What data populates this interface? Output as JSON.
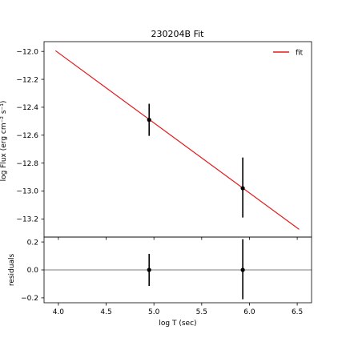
{
  "chart_data": [
    {
      "type": "line",
      "panel": "main",
      "title": "230204B Fit",
      "xlabel": "",
      "ylabel": "log Flux (erg cm⁻² s⁻¹)",
      "xlim": [
        3.85,
        6.65
      ],
      "ylim": [
        -13.33,
        -11.93
      ],
      "xticks": [
        4.0,
        4.5,
        5.0,
        5.5,
        6.0,
        6.5
      ],
      "yticks": [
        -12.0,
        -12.2,
        -12.4,
        -12.6,
        -12.8,
        -13.0,
        -13.2
      ],
      "ytick_labels": [
        "−12.0",
        "−12.2",
        "−12.4",
        "−12.6",
        "−12.8",
        "−13.0",
        "−13.2"
      ],
      "grid": false,
      "legend_position": "top-right",
      "series": [
        {
          "name": "fit",
          "kind": "line",
          "color": "#e41a1c",
          "x": [
            3.97,
            6.52
          ],
          "y": [
            -11.995,
            -13.275
          ]
        },
        {
          "kind": "errorbar",
          "color": "#000000",
          "x": [
            4.95,
            5.93
          ],
          "y": [
            -12.49,
            -12.98
          ],
          "yerr_low": [
            0.115,
            0.21
          ],
          "yerr_high": [
            0.115,
            0.22
          ]
        }
      ]
    },
    {
      "type": "scatter",
      "panel": "residuals",
      "xlabel": "log T (sec)",
      "ylabel": "residuals",
      "xlim": [
        3.85,
        6.65
      ],
      "ylim": [
        -0.235,
        0.235
      ],
      "xticks": [
        4.0,
        4.5,
        5.0,
        5.5,
        6.0,
        6.5
      ],
      "xtick_labels": [
        "4.0",
        "4.5",
        "5.0",
        "5.5",
        "6.0",
        "6.5"
      ],
      "yticks": [
        0.2,
        0.0,
        -0.2
      ],
      "ytick_labels": [
        "0.2",
        "0.0",
        "−0.2"
      ],
      "zero_line": true,
      "grid": false,
      "series": [
        {
          "kind": "errorbar",
          "color": "#000000",
          "x": [
            4.95,
            5.93
          ],
          "y": [
            0.0,
            0.0
          ],
          "yerr_low": [
            0.115,
            0.21
          ],
          "yerr_high": [
            0.115,
            0.22
          ]
        }
      ]
    }
  ]
}
